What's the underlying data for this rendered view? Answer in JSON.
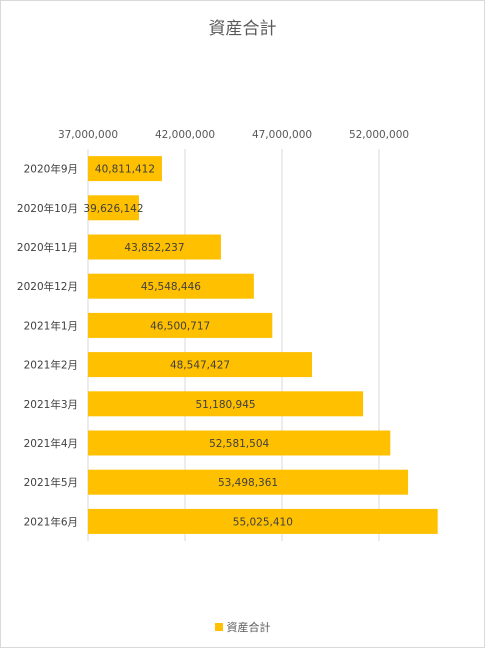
{
  "chart_data": {
    "type": "bar",
    "orientation": "horizontal",
    "title": "資産合計",
    "categories": [
      "2020年9月",
      "2020年10月",
      "2020年11月",
      "2020年12月",
      "2021年1月",
      "2021年2月",
      "2021年3月",
      "2021年4月",
      "2021年5月",
      "2021年6月"
    ],
    "series": [
      {
        "name": "資産合計",
        "color": "#FFC000",
        "values": [
          40811412,
          39626142,
          43852237,
          45548446,
          46500717,
          48547427,
          51180945,
          52581504,
          53498361,
          55025410
        ],
        "labels": [
          "40,811,412",
          "39,626,142",
          "43,852,237",
          "45,548,446",
          "46,500,717",
          "48,547,427",
          "51,180,945",
          "52,581,504",
          "53,498,361",
          "55,025,410"
        ]
      }
    ],
    "xlim": [
      37000000,
      55000000
    ],
    "x_ticks": [
      37000000,
      42000000,
      47000000,
      52000000
    ],
    "x_tick_labels": [
      "37,000,000",
      "42,000,000",
      "47,000,000",
      "52,000,000"
    ],
    "axis_position": "top",
    "grid": "vertical",
    "legend": "bottom"
  }
}
